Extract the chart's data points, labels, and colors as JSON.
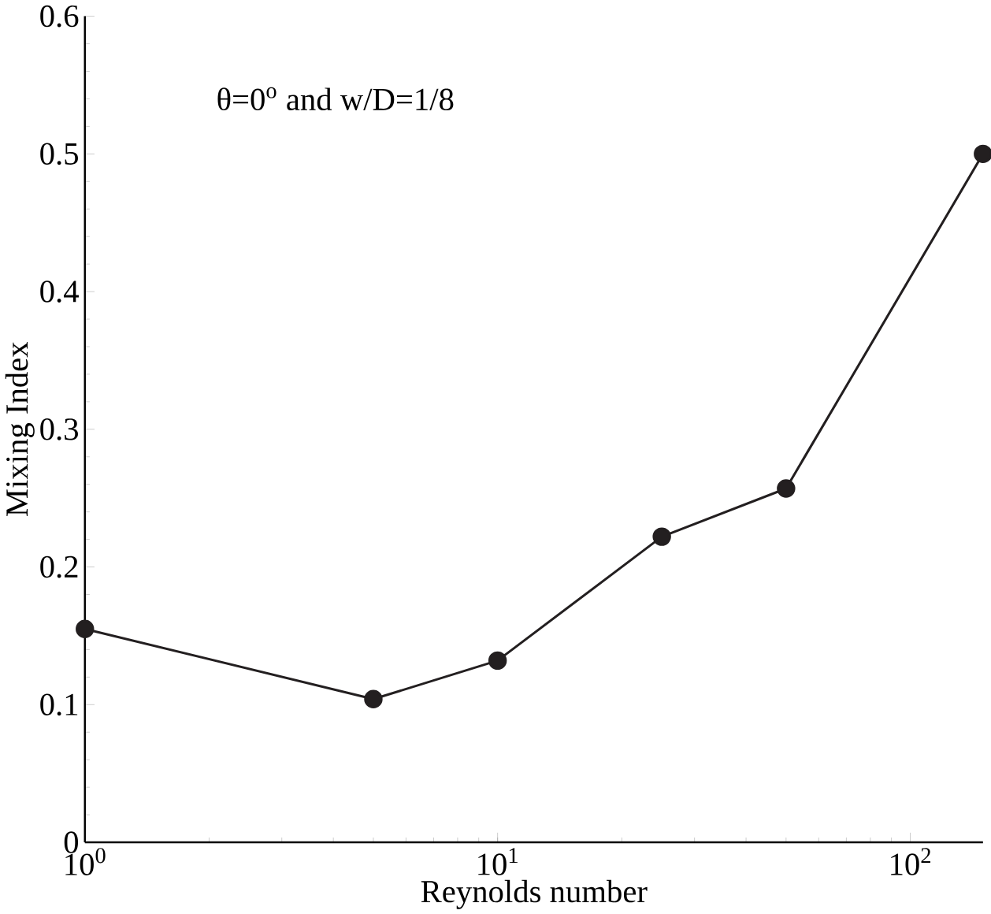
{
  "chart_data": {
    "type": "line",
    "xlabel": "Reynolds number",
    "ylabel": "Mixing Index",
    "annotations": [
      "θ=0$^{o}$ and w/D=1/8"
    ],
    "log": "x",
    "marker": "circle",
    "line_style": "solid",
    "x": [
      1,
      5,
      10,
      25,
      50,
      150
    ],
    "series": [
      {
        "color": "#231f20",
        "values": [
          0.155,
          0.104,
          0.132,
          0.222,
          0.257,
          0.5
        ]
      }
    ],
    "xlim": [
      1,
      150
    ],
    "ylim": [
      0,
      0.6
    ],
    "xticks": [
      {
        "value": 1,
        "label": "10$^{0}$"
      },
      {
        "value": 10,
        "label": "10$^{1}$"
      },
      {
        "value": 100,
        "label": "10$^{2}$"
      }
    ],
    "yticks": [
      0,
      0.1,
      0.2,
      0.3,
      0.4,
      0.5,
      0.6
    ]
  }
}
